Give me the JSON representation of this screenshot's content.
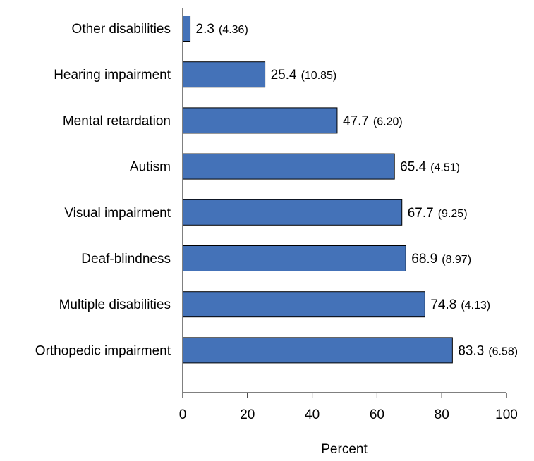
{
  "chart_data": {
    "type": "bar",
    "orientation": "horizontal",
    "categories": [
      "Other disabilities",
      "Hearing impairment",
      "Mental retardation",
      "Autism",
      "Visual impairment",
      "Deaf-blindness",
      "Multiple disabilities",
      "Orthopedic impairment"
    ],
    "values": [
      2.3,
      25.4,
      47.7,
      65.4,
      67.7,
      68.9,
      74.8,
      83.3
    ],
    "value_labels": [
      "2.3",
      "25.4",
      "47.7",
      "65.4",
      "67.7",
      "68.9",
      "74.8",
      "83.3"
    ],
    "standard_error_labels": [
      "(4.36)",
      "(10.85)",
      "(6.20)",
      "(4.51)",
      "(9.25)",
      "(8.97)",
      "(4.13)",
      "(6.58)"
    ],
    "xlabel": "Percent",
    "xlim": [
      0,
      100
    ],
    "xticks": [
      0,
      20,
      40,
      60,
      80,
      100
    ],
    "grid": false,
    "bar_color": "#4472B8",
    "bar_edge_color": "#000000"
  }
}
